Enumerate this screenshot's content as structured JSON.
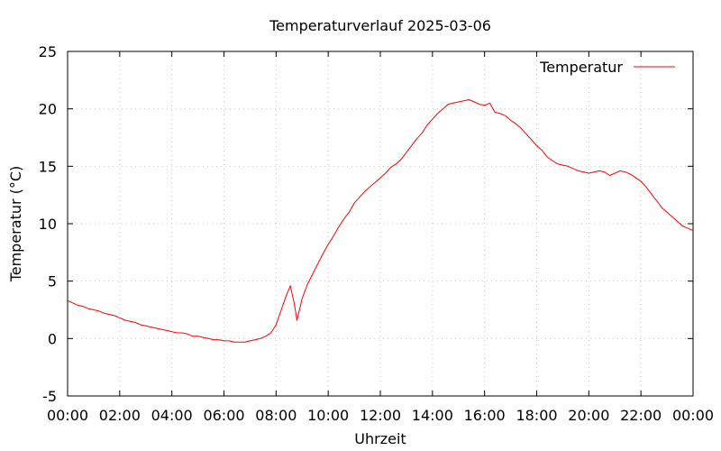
{
  "chart_data": {
    "type": "line",
    "title": "Temperaturverlauf 2025-03-06",
    "xlabel": "Uhrzeit",
    "ylabel": "Temperatur (°C)",
    "xlim": [
      0,
      24
    ],
    "ylim": [
      -5,
      25
    ],
    "grid": true,
    "legend_position": "top-right",
    "x_ticks": [
      "00:00",
      "02:00",
      "04:00",
      "06:00",
      "08:00",
      "10:00",
      "12:00",
      "14:00",
      "16:00",
      "18:00",
      "20:00",
      "22:00",
      "00:00"
    ],
    "y_ticks": [
      "-5",
      "0",
      "5",
      "10",
      "15",
      "20",
      "25"
    ],
    "series": [
      {
        "name": "Temperatur",
        "color": "#ff0000",
        "x": [
          0.0,
          0.1,
          0.2,
          0.4,
          0.6,
          0.8,
          1.0,
          1.2,
          1.4,
          1.6,
          1.8,
          2.0,
          2.2,
          2.4,
          2.6,
          2.8,
          3.0,
          3.2,
          3.4,
          3.6,
          3.8,
          4.0,
          4.2,
          4.4,
          4.6,
          4.8,
          5.0,
          5.2,
          5.4,
          5.6,
          5.8,
          6.0,
          6.2,
          6.4,
          6.6,
          6.8,
          7.0,
          7.2,
          7.4,
          7.6,
          7.8,
          8.0,
          8.2,
          8.4,
          8.55,
          8.7,
          8.8,
          9.0,
          9.2,
          9.4,
          9.6,
          9.8,
          10.0,
          10.2,
          10.4,
          10.6,
          10.8,
          11.0,
          11.2,
          11.4,
          11.6,
          11.8,
          12.0,
          12.2,
          12.4,
          12.6,
          12.8,
          13.0,
          13.2,
          13.4,
          13.6,
          13.8,
          14.0,
          14.2,
          14.4,
          14.6,
          14.8,
          15.0,
          15.2,
          15.4,
          15.6,
          15.8,
          16.0,
          16.2,
          16.4,
          16.6,
          16.8,
          17.0,
          17.2,
          17.4,
          17.6,
          17.8,
          18.0,
          18.2,
          18.4,
          18.6,
          18.8,
          19.0,
          19.2,
          19.4,
          19.6,
          19.8,
          20.0,
          20.2,
          20.4,
          20.6,
          20.8,
          21.0,
          21.2,
          21.4,
          21.6,
          21.8,
          22.0,
          22.2,
          22.4,
          22.6,
          22.8,
          23.0,
          23.2,
          23.4,
          23.6,
          23.8,
          24.0
        ],
        "y": [
          3.3,
          3.2,
          3.1,
          2.9,
          2.8,
          2.6,
          2.5,
          2.4,
          2.2,
          2.1,
          2.0,
          1.8,
          1.6,
          1.5,
          1.4,
          1.2,
          1.1,
          1.0,
          0.9,
          0.8,
          0.7,
          0.6,
          0.5,
          0.5,
          0.4,
          0.2,
          0.2,
          0.1,
          0.0,
          -0.1,
          -0.1,
          -0.2,
          -0.2,
          -0.3,
          -0.3,
          -0.3,
          -0.2,
          -0.1,
          0.0,
          0.2,
          0.5,
          1.2,
          2.5,
          3.8,
          4.6,
          3.0,
          1.6,
          3.5,
          4.7,
          5.6,
          6.5,
          7.4,
          8.2,
          8.9,
          9.7,
          10.4,
          11.0,
          11.8,
          12.3,
          12.8,
          13.2,
          13.6,
          14.0,
          14.4,
          14.9,
          15.2,
          15.6,
          16.2,
          16.8,
          17.4,
          17.9,
          18.6,
          19.1,
          19.6,
          20.0,
          20.4,
          20.5,
          20.6,
          20.7,
          20.8,
          20.6,
          20.4,
          20.3,
          20.5,
          19.7,
          19.6,
          19.4,
          19.0,
          18.7,
          18.3,
          17.8,
          17.3,
          16.8,
          16.4,
          15.8,
          15.5,
          15.2,
          15.1,
          15.0,
          14.8,
          14.6,
          14.5,
          14.4,
          14.5,
          14.6,
          14.5,
          14.2,
          14.4,
          14.6,
          14.5,
          14.3,
          14.0,
          13.7,
          13.2,
          12.6,
          12.0,
          11.4,
          11.0,
          10.6,
          10.2,
          9.8,
          9.6,
          9.4
        ]
      }
    ]
  }
}
